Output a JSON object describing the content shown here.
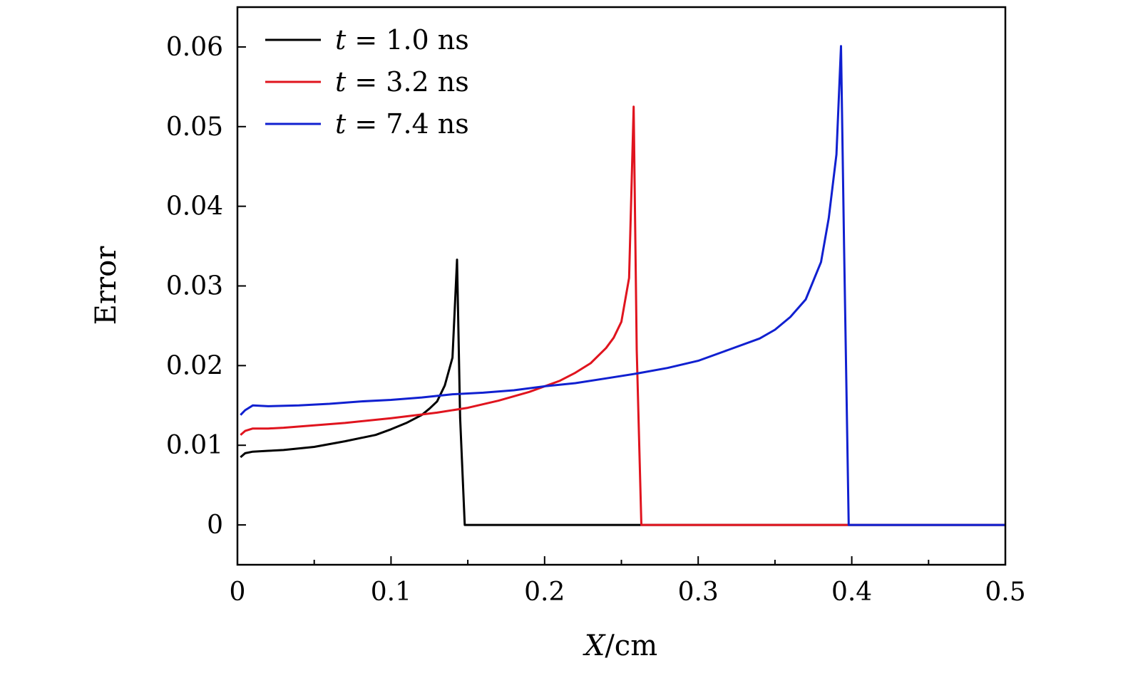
{
  "chart_data": {
    "type": "line",
    "title": "",
    "xlabel_var": "X",
    "xlabel_unit": "/cm",
    "ylabel": "Error",
    "xlim": [
      0,
      0.5
    ],
    "ylim": [
      -0.005,
      0.065
    ],
    "x_ticks": [
      0,
      0.1,
      0.2,
      0.3,
      0.4,
      0.5
    ],
    "x_tick_labels": [
      "0",
      "0.1",
      "0.2",
      "0.3",
      "0.4",
      "0.5"
    ],
    "x_minor_ticks": [
      0.05,
      0.15,
      0.25,
      0.35,
      0.45
    ],
    "y_ticks": [
      0,
      0.01,
      0.02,
      0.03,
      0.04,
      0.05,
      0.06
    ],
    "y_tick_labels": [
      "0",
      "0.01",
      "0.02",
      "0.03",
      "0.04",
      "0.05",
      "0.06"
    ],
    "grid": false,
    "legend_position": "top-left",
    "series": [
      {
        "legend_var": "t",
        "legend_rest": "= 1.0 ns",
        "color": "#000000",
        "x": [
          0.002,
          0.005,
          0.01,
          0.02,
          0.03,
          0.05,
          0.07,
          0.09,
          0.1,
          0.11,
          0.12,
          0.125,
          0.13,
          0.135,
          0.14,
          0.143,
          0.145,
          0.148,
          0.2,
          0.3,
          0.5
        ],
        "y": [
          0.0085,
          0.009,
          0.0092,
          0.0093,
          0.0094,
          0.0098,
          0.0105,
          0.0113,
          0.012,
          0.0128,
          0.0138,
          0.0146,
          0.0155,
          0.0175,
          0.021,
          0.0333,
          0.0135,
          0.0,
          0.0,
          0.0,
          0.0
        ]
      },
      {
        "legend_var": "t",
        "legend_rest": "= 3.2 ns",
        "color": "#e0141e",
        "x": [
          0.002,
          0.005,
          0.01,
          0.02,
          0.03,
          0.05,
          0.07,
          0.1,
          0.13,
          0.15,
          0.17,
          0.19,
          0.21,
          0.22,
          0.23,
          0.24,
          0.245,
          0.25,
          0.255,
          0.258,
          0.26,
          0.263,
          0.3,
          0.5
        ],
        "y": [
          0.0113,
          0.0118,
          0.0121,
          0.0121,
          0.0122,
          0.0125,
          0.0128,
          0.0134,
          0.0141,
          0.0147,
          0.0156,
          0.0167,
          0.0181,
          0.0191,
          0.0203,
          0.0222,
          0.0235,
          0.0255,
          0.031,
          0.0525,
          0.022,
          0.0,
          0.0,
          0.0
        ]
      },
      {
        "legend_var": "t",
        "legend_rest": "= 7.4 ns",
        "color": "#1020d0",
        "x": [
          0.002,
          0.005,
          0.01,
          0.02,
          0.04,
          0.06,
          0.08,
          0.1,
          0.12,
          0.14,
          0.16,
          0.18,
          0.2,
          0.22,
          0.24,
          0.26,
          0.28,
          0.3,
          0.32,
          0.34,
          0.35,
          0.36,
          0.37,
          0.38,
          0.385,
          0.39,
          0.393,
          0.395,
          0.398,
          0.45,
          0.5
        ],
        "y": [
          0.0138,
          0.0144,
          0.015,
          0.0149,
          0.015,
          0.0152,
          0.0155,
          0.0157,
          0.016,
          0.0164,
          0.0166,
          0.0169,
          0.0174,
          0.0178,
          0.0184,
          0.019,
          0.0197,
          0.0206,
          0.022,
          0.0234,
          0.0245,
          0.0261,
          0.0283,
          0.033,
          0.0385,
          0.0465,
          0.0601,
          0.035,
          0.0,
          0.0,
          0.0
        ]
      }
    ]
  }
}
